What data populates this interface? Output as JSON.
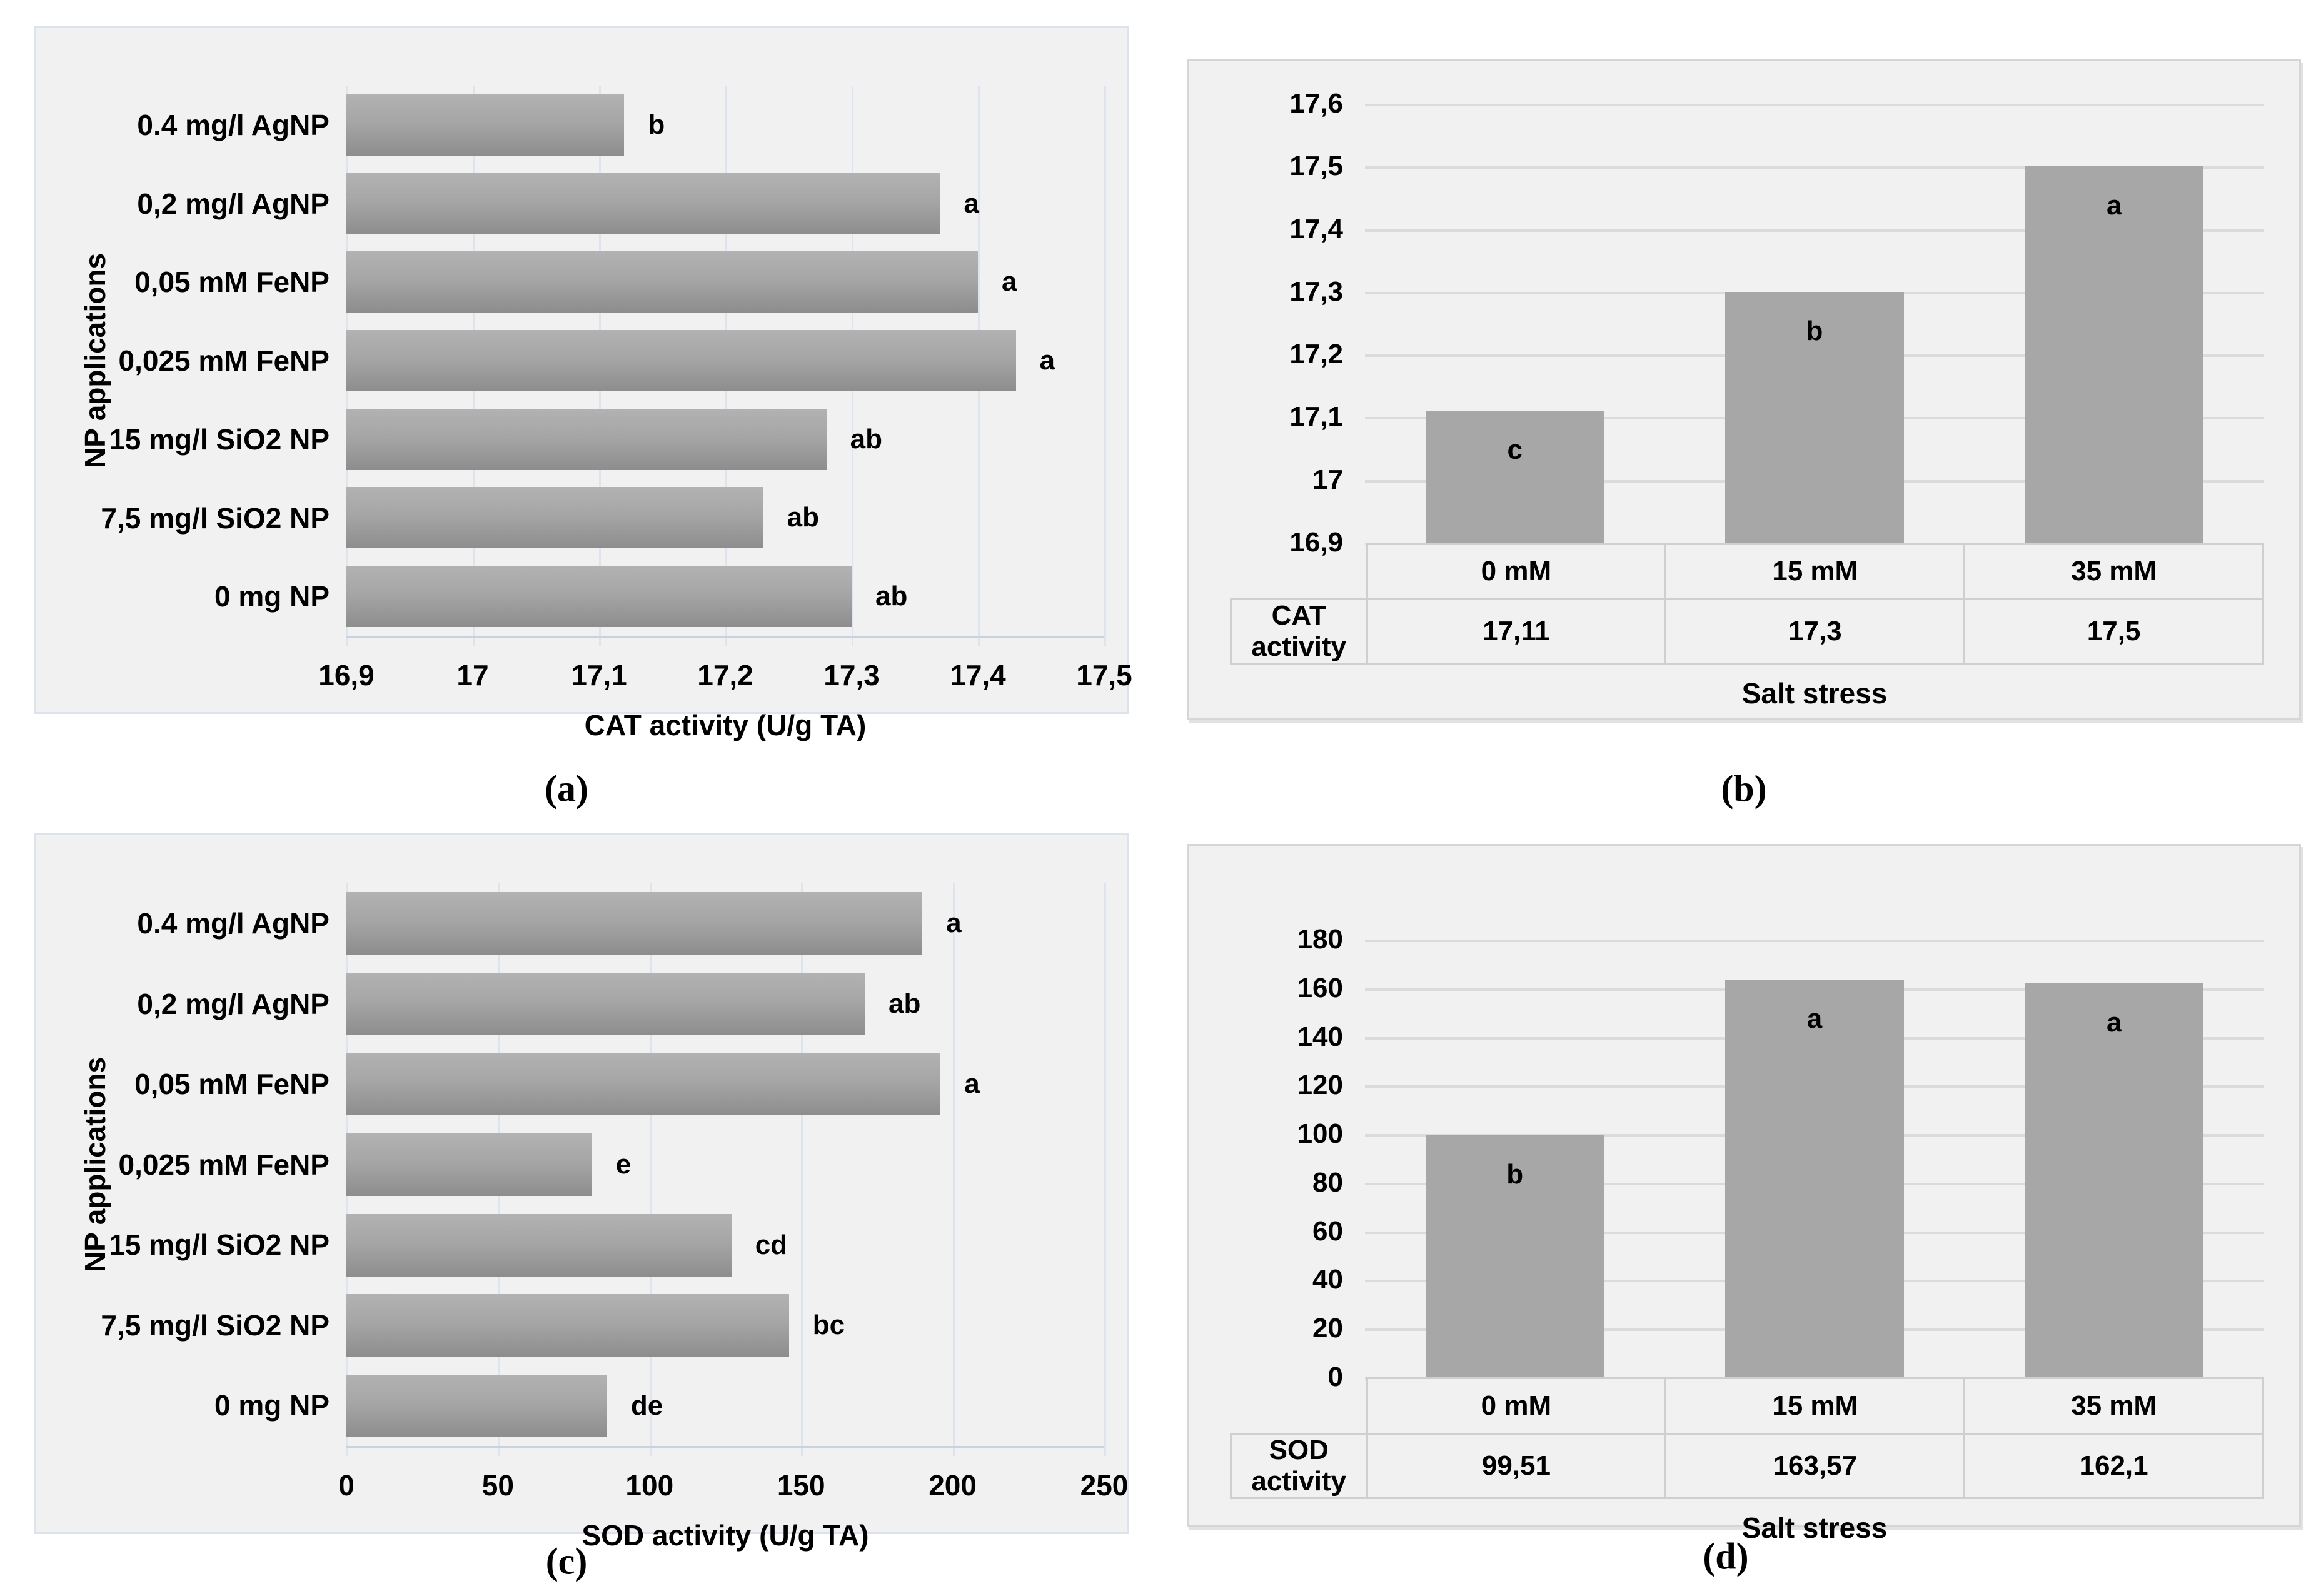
{
  "captions": {
    "a": "(a)",
    "b": "(b)",
    "c": "(c)",
    "d": "(d)"
  },
  "colors": {
    "panel_bg": "#f1f1f1",
    "panel_border_blue": "#dde3ec",
    "panel_border_gray": "#d6d6d6",
    "hbar_gradient_top": "#b2b2b2",
    "hbar_gradient_bottom": "#8d8d8d",
    "vbar_fill": "#a7a7a7",
    "grid_blue": "#dde4ee",
    "grid_gray": "#dbdbdb",
    "text": "#000000"
  },
  "chart_data": [
    {
      "id": "a",
      "type": "bar",
      "orientation": "horizontal",
      "title": "",
      "xlabel": "CAT activity (U/g TA)",
      "ylabel": "NP applications",
      "categories": [
        "0.4 mg/l AgNP",
        "0,2 mg/l AgNP",
        "0,05 mM FeNP",
        "0,025 mM FeNP",
        "15 mg/l SiO2 NP",
        "7,5 mg/l SiO2 NP",
        "0 mg NP"
      ],
      "values": [
        17.12,
        17.37,
        17.4,
        17.43,
        17.28,
        17.23,
        17.3
      ],
      "sig_letters": [
        "b",
        "a",
        "a",
        "a",
        "ab",
        "ab",
        "ab"
      ],
      "xlim": [
        16.9,
        17.5
      ],
      "xtick_labels": [
        "16,9",
        "17",
        "17,1",
        "17,2",
        "17,3",
        "17,4",
        "17,5"
      ],
      "xticks": [
        16.9,
        17.0,
        17.1,
        17.2,
        17.3,
        17.4,
        17.5
      ],
      "grid": "vertical",
      "legend": "none"
    },
    {
      "id": "b",
      "type": "bar",
      "orientation": "vertical",
      "title": "",
      "xlabel": "Salt stress",
      "series_name": "CAT activity",
      "categories": [
        "0 mM",
        "15 mM",
        "35 mM"
      ],
      "values": [
        17.11,
        17.3,
        17.5
      ],
      "value_labels": [
        "17,11",
        "17,3",
        "17,5"
      ],
      "sig_letters": [
        "c",
        "b",
        "a"
      ],
      "ylim": [
        16.9,
        17.6
      ],
      "ytick_labels": [
        "17,6",
        "17,5",
        "17,4",
        "17,3",
        "17,2",
        "17,1",
        "17",
        "16,9"
      ],
      "yticks": [
        17.6,
        17.5,
        17.4,
        17.3,
        17.2,
        17.1,
        17.0,
        16.9
      ],
      "grid": "horizontal",
      "data_table": true,
      "legend": "none"
    },
    {
      "id": "c",
      "type": "bar",
      "orientation": "horizontal",
      "title": "",
      "xlabel": "SOD activity (U/g TA)",
      "ylabel": "NP applications",
      "categories": [
        "0.4 mg/l AgNP",
        "0,2 mg/l AgNP",
        "0,05 mM FeNP",
        "0,025 mM FeNP",
        "15 mg/l SiO2 NP",
        "7,5 mg/l SiO2 NP",
        "0 mg NP"
      ],
      "values": [
        190,
        171,
        196,
        81,
        127,
        146,
        86
      ],
      "sig_letters": [
        "a",
        "ab",
        "a",
        "e",
        "cd",
        "bc",
        "de"
      ],
      "xlim": [
        0,
        250
      ],
      "xtick_labels": [
        "0",
        "50",
        "100",
        "150",
        "200",
        "250"
      ],
      "xticks": [
        0,
        50,
        100,
        150,
        200,
        250
      ],
      "grid": "vertical",
      "legend": "none"
    },
    {
      "id": "d",
      "type": "bar",
      "orientation": "vertical",
      "title": "",
      "xlabel": "Salt stress",
      "series_name": "SOD activity",
      "categories": [
        "0 mM",
        "15 mM",
        "35 mM"
      ],
      "values": [
        99.51,
        163.57,
        162.1
      ],
      "value_labels": [
        "99,51",
        "163,57",
        "162,1"
      ],
      "sig_letters": [
        "b",
        "a",
        "a"
      ],
      "ylim": [
        0,
        180
      ],
      "ytick_labels": [
        "180",
        "160",
        "140",
        "120",
        "100",
        "80",
        "60",
        "40",
        "20",
        "0"
      ],
      "yticks": [
        180,
        160,
        140,
        120,
        100,
        80,
        60,
        40,
        20,
        0
      ],
      "grid": "horizontal",
      "data_table": true,
      "legend": "none"
    }
  ]
}
